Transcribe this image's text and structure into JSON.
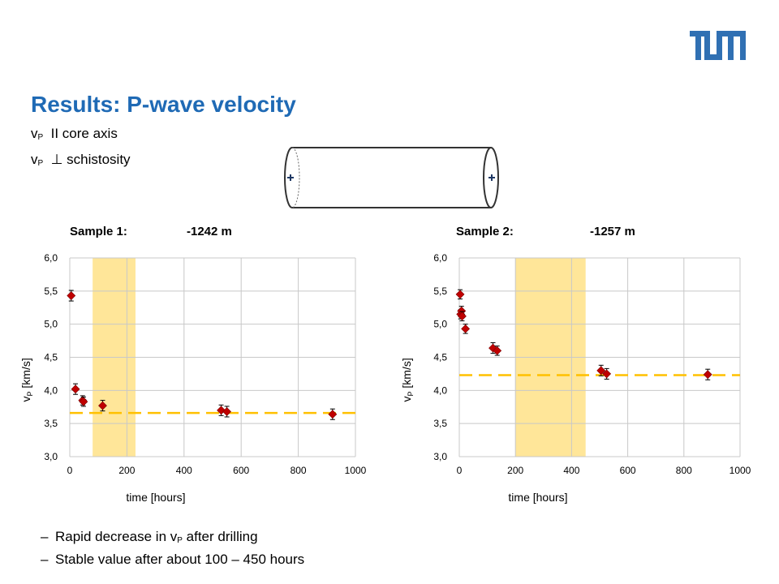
{
  "slide": {
    "title": "Results: P-wave velocity",
    "sub1": {
      "v": "v",
      "p": "P",
      "rest": "  II core axis"
    },
    "sub2": {
      "v": "v",
      "p": "P",
      "rest": "  ⊥ schistosity"
    },
    "bullets": [
      {
        "dash": "–",
        "text_before": "Rapid decrease in v",
        "sub": "P",
        "text_after": " after drilling"
      },
      {
        "dash": "–",
        "text_before": "Stable value after about 100 – 450 hours",
        "sub": "",
        "text_after": ""
      }
    ],
    "logo_text": "TUM"
  },
  "colors": {
    "title": "#1f6ab5",
    "marker": "#c00000",
    "dashed_line": "#ffc000",
    "band": "#ffe699",
    "logo": "#3070b3",
    "cylinder": "#333333"
  },
  "chart_data": [
    {
      "type": "scatter",
      "sample_label": "Sample 1:",
      "depth_label": "-1242 m",
      "xlabel": "time [hours]",
      "ylabel_v": "v",
      "ylabel_sub": "P",
      "ylabel_rest": " [km/s]",
      "xlim": [
        0,
        1000
      ],
      "ylim": [
        3.0,
        6.0
      ],
      "x_ticks": [
        "0",
        "200",
        "400",
        "600",
        "800",
        "1000"
      ],
      "y_ticks": [
        "3,0",
        "3,5",
        "4,0",
        "4,5",
        "5,0",
        "5,5",
        "6,0"
      ],
      "grid": true,
      "band": [
        80,
        230
      ],
      "dashed_level": 3.66,
      "points": [
        {
          "x": 5,
          "y": 5.43,
          "err": 0.08
        },
        {
          "x": 20,
          "y": 4.02,
          "err": 0.08
        },
        {
          "x": 45,
          "y": 3.85,
          "err": 0.07
        },
        {
          "x": 48,
          "y": 3.83,
          "err": 0.07
        },
        {
          "x": 115,
          "y": 3.77,
          "err": 0.08
        },
        {
          "x": 530,
          "y": 3.7,
          "err": 0.08
        },
        {
          "x": 550,
          "y": 3.68,
          "err": 0.08
        },
        {
          "x": 920,
          "y": 3.64,
          "err": 0.08
        }
      ]
    },
    {
      "type": "scatter",
      "sample_label": "Sample 2:",
      "depth_label": "-1257 m",
      "xlabel": "time [hours]",
      "ylabel_v": "v",
      "ylabel_sub": "P",
      "ylabel_rest": " [km/s]",
      "xlim": [
        0,
        1000
      ],
      "ylim": [
        3.0,
        6.0
      ],
      "x_ticks": [
        "0",
        "200",
        "400",
        "600",
        "800",
        "1000"
      ],
      "y_ticks": [
        "3,0",
        "3,5",
        "4,0",
        "4,5",
        "5,0",
        "5,5",
        "6,0"
      ],
      "grid": true,
      "band": [
        200,
        450
      ],
      "dashed_level": 4.23,
      "points": [
        {
          "x": 3,
          "y": 5.45,
          "err": 0.07
        },
        {
          "x": 5,
          "y": 5.15,
          "err": 0.07
        },
        {
          "x": 8,
          "y": 5.2,
          "err": 0.07
        },
        {
          "x": 10,
          "y": 5.12,
          "err": 0.07
        },
        {
          "x": 22,
          "y": 4.93,
          "err": 0.07
        },
        {
          "x": 120,
          "y": 4.64,
          "err": 0.08
        },
        {
          "x": 135,
          "y": 4.6,
          "err": 0.07
        },
        {
          "x": 505,
          "y": 4.3,
          "err": 0.08
        },
        {
          "x": 525,
          "y": 4.25,
          "err": 0.08
        },
        {
          "x": 885,
          "y": 4.24,
          "err": 0.08
        }
      ]
    }
  ]
}
